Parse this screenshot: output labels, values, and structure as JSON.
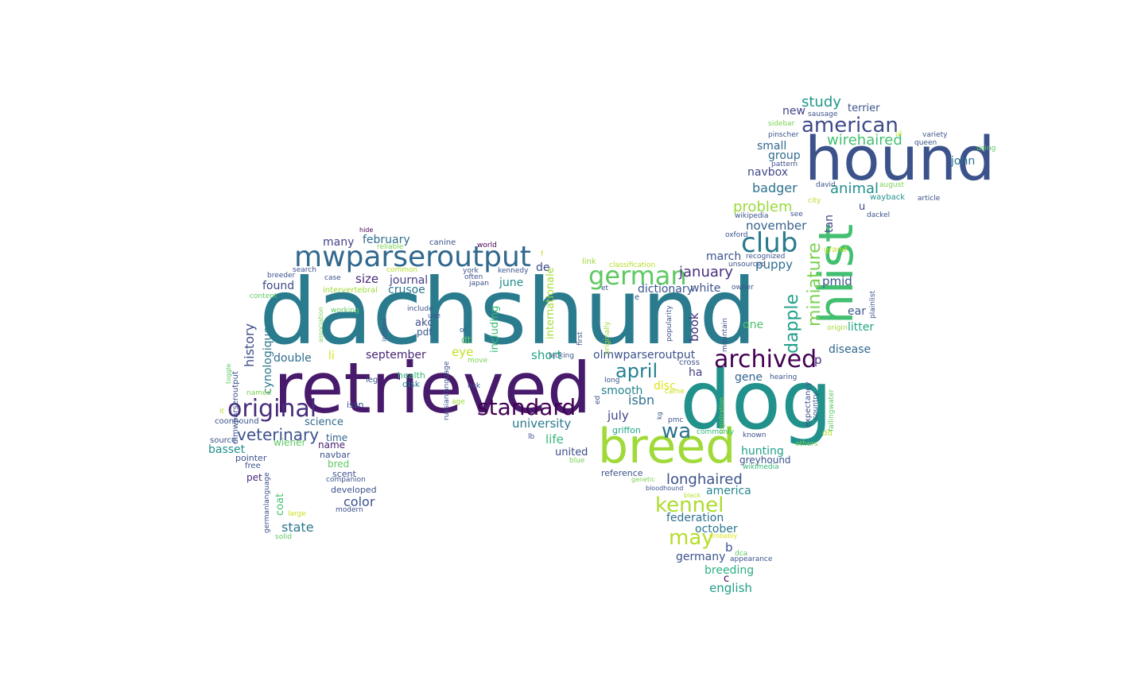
{
  "cloud": {
    "words": [
      {
        "text": "dachshund",
        "color": "#2a7b8e"
      },
      {
        "text": "retrieved",
        "color": "#481a6c"
      },
      {
        "text": "dog",
        "color": "#21918c"
      },
      {
        "text": "hound",
        "color": "#3b528b"
      },
      {
        "text": "breed",
        "color": "#a0da39"
      },
      {
        "text": "hlist",
        "color": "#43bf71"
      },
      {
        "text": "mwparseroutput",
        "color": "#31688e"
      },
      {
        "text": "archived",
        "color": "#440154"
      },
      {
        "text": "original",
        "color": "#472c7a"
      },
      {
        "text": "standard",
        "color": "#440154"
      },
      {
        "text": "club",
        "color": "#287c8e"
      },
      {
        "text": "german",
        "color": "#5ec962"
      },
      {
        "text": "american",
        "color": "#3e4a89"
      },
      {
        "text": "april",
        "color": "#26828e"
      },
      {
        "text": "wa",
        "color": "#2c728e"
      },
      {
        "text": "may",
        "color": "#b5de2b"
      },
      {
        "text": "kennel",
        "color": "#addc30"
      },
      {
        "text": "dapple",
        "color": "#1fa088"
      },
      {
        "text": "miniature",
        "color": "#7ad151"
      },
      {
        "text": "wirehaired",
        "color": "#44bf70"
      },
      {
        "text": "veterinary",
        "color": "#3b528b"
      },
      {
        "text": "longhaired",
        "color": "#3b528b"
      },
      {
        "text": "january",
        "color": "#472f7d"
      },
      {
        "text": "study",
        "color": "#1f968b"
      },
      {
        "text": "animal",
        "color": "#21908d"
      },
      {
        "text": "badger",
        "color": "#2c728e"
      },
      {
        "text": "problem",
        "color": "#9bd93c"
      },
      {
        "text": "history",
        "color": "#3e4989"
      },
      {
        "text": "color",
        "color": "#3b528b"
      },
      {
        "text": "state",
        "color": "#29788e"
      },
      {
        "text": "life",
        "color": "#37b878"
      },
      {
        "text": "university",
        "color": "#2a788e"
      },
      {
        "text": "isbn",
        "color": "#2d708e"
      },
      {
        "text": "july",
        "color": "#414487"
      },
      {
        "text": "eye",
        "color": "#c2df23"
      },
      {
        "text": "short",
        "color": "#20a486"
      },
      {
        "text": "book",
        "color": "#46327e"
      },
      {
        "text": "puppy",
        "color": "#2f6c8e"
      },
      {
        "text": "pmid",
        "color": "#3a538b"
      },
      {
        "text": "size",
        "color": "#482878"
      },
      {
        "text": "november",
        "color": "#355f8d"
      },
      {
        "text": "new",
        "color": "#424186"
      },
      {
        "text": "terrier",
        "color": "#3b528b"
      },
      {
        "text": "small",
        "color": "#31688e"
      },
      {
        "text": "group",
        "color": "#2f6b8e"
      },
      {
        "text": "navbox",
        "color": "#3f4788"
      },
      {
        "text": "tan",
        "color": "#3f4889"
      },
      {
        "text": "john",
        "color": "#2b758e"
      },
      {
        "text": "u",
        "color": "#3e4c8a"
      },
      {
        "text": "p",
        "color": "#472d7b"
      },
      {
        "text": "ear",
        "color": "#38588c"
      },
      {
        "text": "litter",
        "color": "#22a785"
      },
      {
        "text": "disease",
        "color": "#31688e"
      },
      {
        "text": "one",
        "color": "#4ec36b"
      },
      {
        "text": "found",
        "color": "#3e4989"
      },
      {
        "text": "many",
        "color": "#424186"
      },
      {
        "text": "february",
        "color": "#2e6e8e"
      },
      {
        "text": "journal",
        "color": "#433e85"
      },
      {
        "text": "crusoe",
        "color": "#2a788e"
      },
      {
        "text": "june",
        "color": "#228c8d"
      },
      {
        "text": "de",
        "color": "#3e4989"
      },
      {
        "text": "march",
        "color": "#3b528b"
      },
      {
        "text": "white",
        "color": "#3b528b"
      },
      {
        "text": "dictionary",
        "color": "#39558c"
      },
      {
        "text": "olmwparseroutput",
        "color": "#3b528b"
      },
      {
        "text": "september",
        "color": "#482576"
      },
      {
        "text": "double",
        "color": "#2e6d8e"
      },
      {
        "text": "li",
        "color": "#d8e219"
      },
      {
        "text": "cynologique",
        "color": "#2a768e"
      },
      {
        "text": "akc",
        "color": "#3e4c8a"
      },
      {
        "text": "pdf",
        "color": "#38598c"
      },
      {
        "text": "dt",
        "color": "#5ec962"
      },
      {
        "text": "internationale",
        "color": "#a5db36"
      },
      {
        "text": "including",
        "color": "#3aba76"
      },
      {
        "text": "ha",
        "color": "#433d84"
      },
      {
        "text": "gene",
        "color": "#33638d"
      },
      {
        "text": "smooth",
        "color": "#25858e"
      },
      {
        "text": "disc",
        "color": "#dde318"
      },
      {
        "text": "hunting",
        "color": "#1fa088"
      },
      {
        "text": "greyhound",
        "color": "#3b528b"
      },
      {
        "text": "america",
        "color": "#24878e"
      },
      {
        "text": "federation",
        "color": "#2d708e"
      },
      {
        "text": "october",
        "color": "#2a778e"
      },
      {
        "text": "b",
        "color": "#3b528b"
      },
      {
        "text": "germany",
        "color": "#3b528b"
      },
      {
        "text": "breeding",
        "color": "#2ab07f"
      },
      {
        "text": "c",
        "color": "#440154"
      },
      {
        "text": "english",
        "color": "#1f9e89"
      },
      {
        "text": "united",
        "color": "#3d4d8a"
      },
      {
        "text": "reference",
        "color": "#3b528b"
      },
      {
        "text": "griffon",
        "color": "#20a486"
      },
      {
        "text": "coat",
        "color": "#45bf6f"
      },
      {
        "text": "science",
        "color": "#31688e"
      },
      {
        "text": "time",
        "color": "#33638d"
      },
      {
        "text": "name",
        "color": "#482173"
      },
      {
        "text": "wiener",
        "color": "#5ec962"
      },
      {
        "text": "basset",
        "color": "#21918c"
      },
      {
        "text": "pointer",
        "color": "#3b528b"
      },
      {
        "text": "pet",
        "color": "#472c7a"
      },
      {
        "text": "bred",
        "color": "#5ec962"
      },
      {
        "text": "navbar",
        "color": "#3b528b"
      },
      {
        "text": "scent",
        "color": "#3b528b"
      },
      {
        "text": "companion",
        "color": "#3b528b"
      },
      {
        "text": "developed",
        "color": "#3b528b"
      },
      {
        "text": "coonhound",
        "color": "#3b528b"
      },
      {
        "text": "source",
        "color": "#3b528b"
      },
      {
        "text": "free",
        "color": "#3b528b"
      },
      {
        "text": "issn",
        "color": "#3b528b"
      },
      {
        "text": "health",
        "color": "#35b779"
      },
      {
        "text": "disk",
        "color": "#26828e"
      },
      {
        "text": "leg",
        "color": "#3b528b"
      },
      {
        "text": "risk",
        "color": "#3b528b"
      },
      {
        "text": "age",
        "color": "#a0da39"
      },
      {
        "text": "lb",
        "color": "#3b528b"
      },
      {
        "text": "blue",
        "color": "#7ad151"
      },
      {
        "text": "kg",
        "color": "#3b528b"
      },
      {
        "text": "pmc",
        "color": "#3b528b"
      },
      {
        "text": "cross",
        "color": "#3b528b"
      },
      {
        "text": "came",
        "color": "#c8e020"
      },
      {
        "text": "commonly",
        "color": "#35b779"
      },
      {
        "text": "known",
        "color": "#3b528b"
      },
      {
        "text": "others",
        "color": "#7ad151"
      },
      {
        "text": "dd",
        "color": "#b5de2b"
      },
      {
        "text": "genetic",
        "color": "#7ad151"
      },
      {
        "text": "bloodhound",
        "color": "#3b528b"
      },
      {
        "text": "black",
        "color": "#b5de2b"
      },
      {
        "text": "wikimedia",
        "color": "#35b779"
      },
      {
        "text": "probably",
        "color": "#dde318"
      },
      {
        "text": "dca",
        "color": "#5ec962"
      },
      {
        "text": "appearance",
        "color": "#3b528b"
      },
      {
        "text": "hearing",
        "color": "#3b528b"
      },
      {
        "text": "expectancy",
        "color": "#3b528b"
      },
      {
        "text": "country",
        "color": "#3b528b"
      },
      {
        "text": "fallingwater",
        "color": "#5ec962"
      },
      {
        "text": "registration",
        "color": "#7ad151"
      },
      {
        "text": "mountain",
        "color": "#3b528b"
      },
      {
        "text": "popularity",
        "color": "#3b528b"
      },
      {
        "text": "originally",
        "color": "#a0da39"
      },
      {
        "text": "long",
        "color": "#3b528b"
      },
      {
        "text": "e",
        "color": "#3b528b"
      },
      {
        "text": "et",
        "color": "#3b528b"
      },
      {
        "text": "lacking",
        "color": "#3b528b"
      },
      {
        "text": "first",
        "color": "#3b528b"
      },
      {
        "text": "ed",
        "color": "#3b528b"
      },
      {
        "text": "move",
        "color": "#7ad151"
      },
      {
        "text": "russianlanguage",
        "color": "#3b528b"
      },
      {
        "text": "ol",
        "color": "#3b528b"
      },
      {
        "text": "use",
        "color": "#3b528b"
      },
      {
        "text": "include",
        "color": "#3b528b"
      },
      {
        "text": "infobox",
        "color": "#3b528b"
      },
      {
        "text": "intervertebral",
        "color": "#a0da39"
      },
      {
        "text": "association",
        "color": "#7ad151"
      },
      {
        "text": "working",
        "color": "#5ec962"
      },
      {
        "text": "case",
        "color": "#3b528b"
      },
      {
        "text": "common",
        "color": "#b5de2b"
      },
      {
        "text": "breeder",
        "color": "#3b528b"
      },
      {
        "text": "search",
        "color": "#3b528b"
      },
      {
        "text": "content",
        "color": "#5ec962"
      },
      {
        "text": "hide",
        "color": "#440154"
      },
      {
        "text": "reliable",
        "color": "#7ad151"
      },
      {
        "text": "canine",
        "color": "#3b528b"
      },
      {
        "text": "world",
        "color": "#440154"
      },
      {
        "text": "york",
        "color": "#3b528b"
      },
      {
        "text": "japan",
        "color": "#3b528b"
      },
      {
        "text": "often",
        "color": "#3b528b"
      },
      {
        "text": "kennedy",
        "color": "#3b528b"
      },
      {
        "text": "f",
        "color": "#c8e020"
      },
      {
        "text": "link",
        "color": "#a0da39"
      },
      {
        "text": "classification",
        "color": "#b5de2b"
      },
      {
        "text": "oxford",
        "color": "#3b528b"
      },
      {
        "text": "recognized",
        "color": "#3b528b"
      },
      {
        "text": "unsourced",
        "color": "#3b528b"
      },
      {
        "text": "grand",
        "color": "#c8e020"
      },
      {
        "text": "owner",
        "color": "#3b528b"
      },
      {
        "text": "plainlist",
        "color": "#3b528b"
      },
      {
        "text": "origin",
        "color": "#a0da39"
      },
      {
        "text": "dackel",
        "color": "#3b528b"
      },
      {
        "text": "wikipedia",
        "color": "#3b528b"
      },
      {
        "text": "see",
        "color": "#3b528b"
      },
      {
        "text": "city",
        "color": "#b5de2b"
      },
      {
        "text": "david",
        "color": "#3b528b"
      },
      {
        "text": "wayback",
        "color": "#21918c"
      },
      {
        "text": "article",
        "color": "#3b528b"
      },
      {
        "text": "august",
        "color": "#7ad151"
      },
      {
        "text": "using",
        "color": "#5ec962"
      },
      {
        "text": "sidebar",
        "color": "#7ad151"
      },
      {
        "text": "pinscher",
        "color": "#3b528b"
      },
      {
        "text": "pattern",
        "color": "#3b528b"
      },
      {
        "text": "sausage",
        "color": "#3b528b"
      },
      {
        "text": "variety",
        "color": "#3b528b"
      },
      {
        "text": "queen",
        "color": "#3b528b"
      },
      {
        "text": "ul",
        "color": "#c8e020"
      },
      {
        "text": "dlmwparseroutput",
        "color": "#3b528b"
      },
      {
        "text": "toggle",
        "color": "#5ec962"
      },
      {
        "text": "named",
        "color": "#7ad151"
      },
      {
        "text": "it",
        "color": "#b5de2b"
      },
      {
        "text": "germanlanguage",
        "color": "#3b528b"
      },
      {
        "text": "large",
        "color": "#c8e020"
      },
      {
        "text": "solid",
        "color": "#5ec962"
      },
      {
        "text": "modern",
        "color": "#3b528b"
      }
    ]
  }
}
